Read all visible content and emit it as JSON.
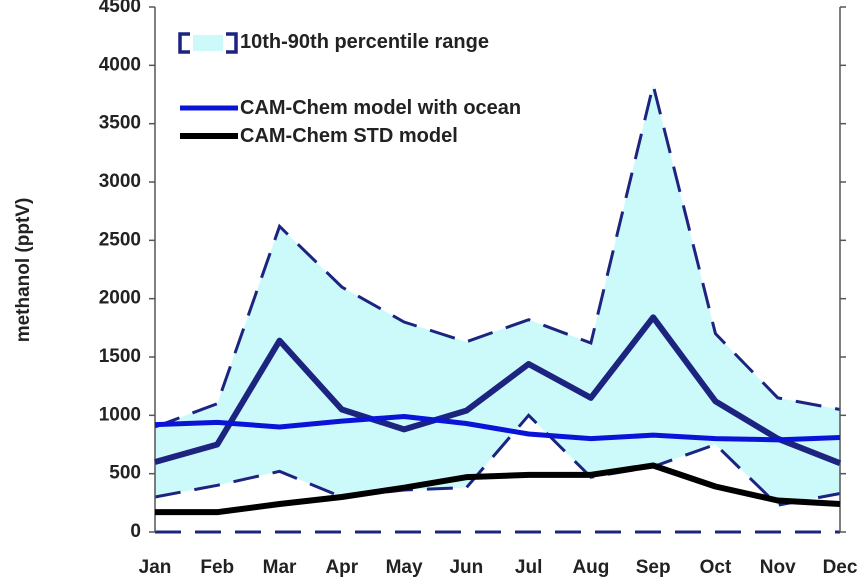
{
  "chart_data": {
    "type": "line",
    "y_label": "methanol (pptV)",
    "categories": [
      "Jan",
      "Feb",
      "Mar",
      "Apr",
      "May",
      "Jun",
      "Jul",
      "Aug",
      "Sep",
      "Oct",
      "Nov",
      "Dec"
    ],
    "ylim": [
      0,
      4500
    ],
    "yticks": [
      0,
      500,
      1000,
      1500,
      2000,
      2500,
      3000,
      3500,
      4000,
      4500
    ],
    "band": {
      "name": "10th-90th percentile range",
      "color": "#ccfafa",
      "line_color": "#1c2480",
      "lower": [
        300,
        400,
        520,
        300,
        360,
        380,
        1000,
        470,
        560,
        750,
        230,
        330
      ],
      "upper": [
        900,
        1100,
        2620,
        2100,
        1800,
        1630,
        1820,
        1620,
        3830,
        1700,
        1150,
        1050
      ]
    },
    "series": [
      {
        "color": "#1c2480",
        "width": 6,
        "values": [
          600,
          750,
          1640,
          1050,
          880,
          1040,
          1440,
          1150,
          1840,
          1120,
          800,
          590
        ]
      },
      {
        "name": "CAM-Chem model with ocean",
        "color": "#0a14d8",
        "width": 5,
        "values": [
          920,
          940,
          900,
          950,
          990,
          930,
          840,
          800,
          830,
          800,
          790,
          810
        ]
      },
      {
        "name": "CAM-Chem STD model",
        "color": "#000000",
        "width": 6,
        "values": [
          170,
          170,
          240,
          300,
          380,
          470,
          490,
          490,
          570,
          390,
          270,
          240
        ]
      }
    ]
  }
}
